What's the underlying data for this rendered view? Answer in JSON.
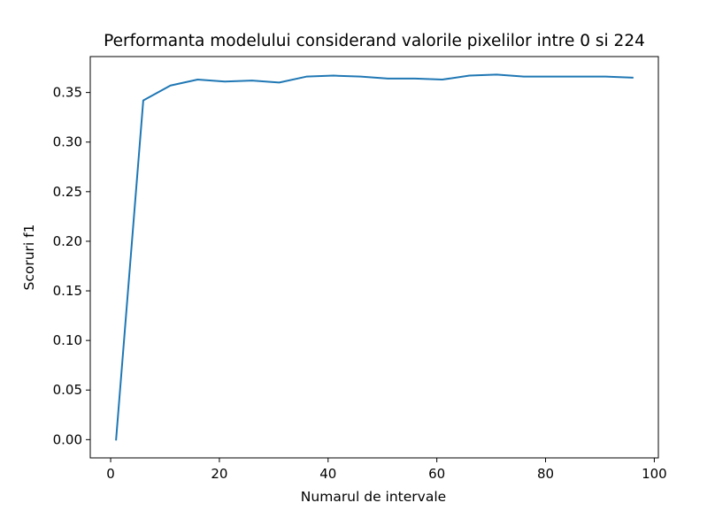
{
  "chart_data": {
    "type": "line",
    "title": "Performanta modelului considerand valorile pixelilor intre 0 si 224",
    "xlabel": "Numarul de intervale",
    "ylabel": "Scoruri f1",
    "xlim": [
      -3.75,
      100.75
    ],
    "ylim": [
      -0.0184,
      0.3862
    ],
    "xticks": [
      0,
      20,
      40,
      60,
      80,
      100
    ],
    "xtick_labels": [
      "0",
      "20",
      "40",
      "60",
      "80",
      "100"
    ],
    "yticks": [
      0.0,
      0.05,
      0.1,
      0.15,
      0.2,
      0.25,
      0.3,
      0.35
    ],
    "ytick_labels": [
      "0.00",
      "0.05",
      "0.10",
      "0.15",
      "0.20",
      "0.25",
      "0.30",
      "0.35"
    ],
    "grid": false,
    "series": [
      {
        "color": "#1f77b4",
        "x": [
          1,
          6,
          11,
          16,
          21,
          26,
          31,
          36,
          41,
          46,
          51,
          56,
          61,
          66,
          71,
          76,
          81,
          86,
          91,
          96
        ],
        "y": [
          0.0,
          0.342,
          0.357,
          0.363,
          0.361,
          0.362,
          0.36,
          0.366,
          0.367,
          0.366,
          0.364,
          0.364,
          0.363,
          0.367,
          0.368,
          0.366,
          0.366,
          0.366,
          0.366,
          0.365
        ]
      }
    ]
  }
}
